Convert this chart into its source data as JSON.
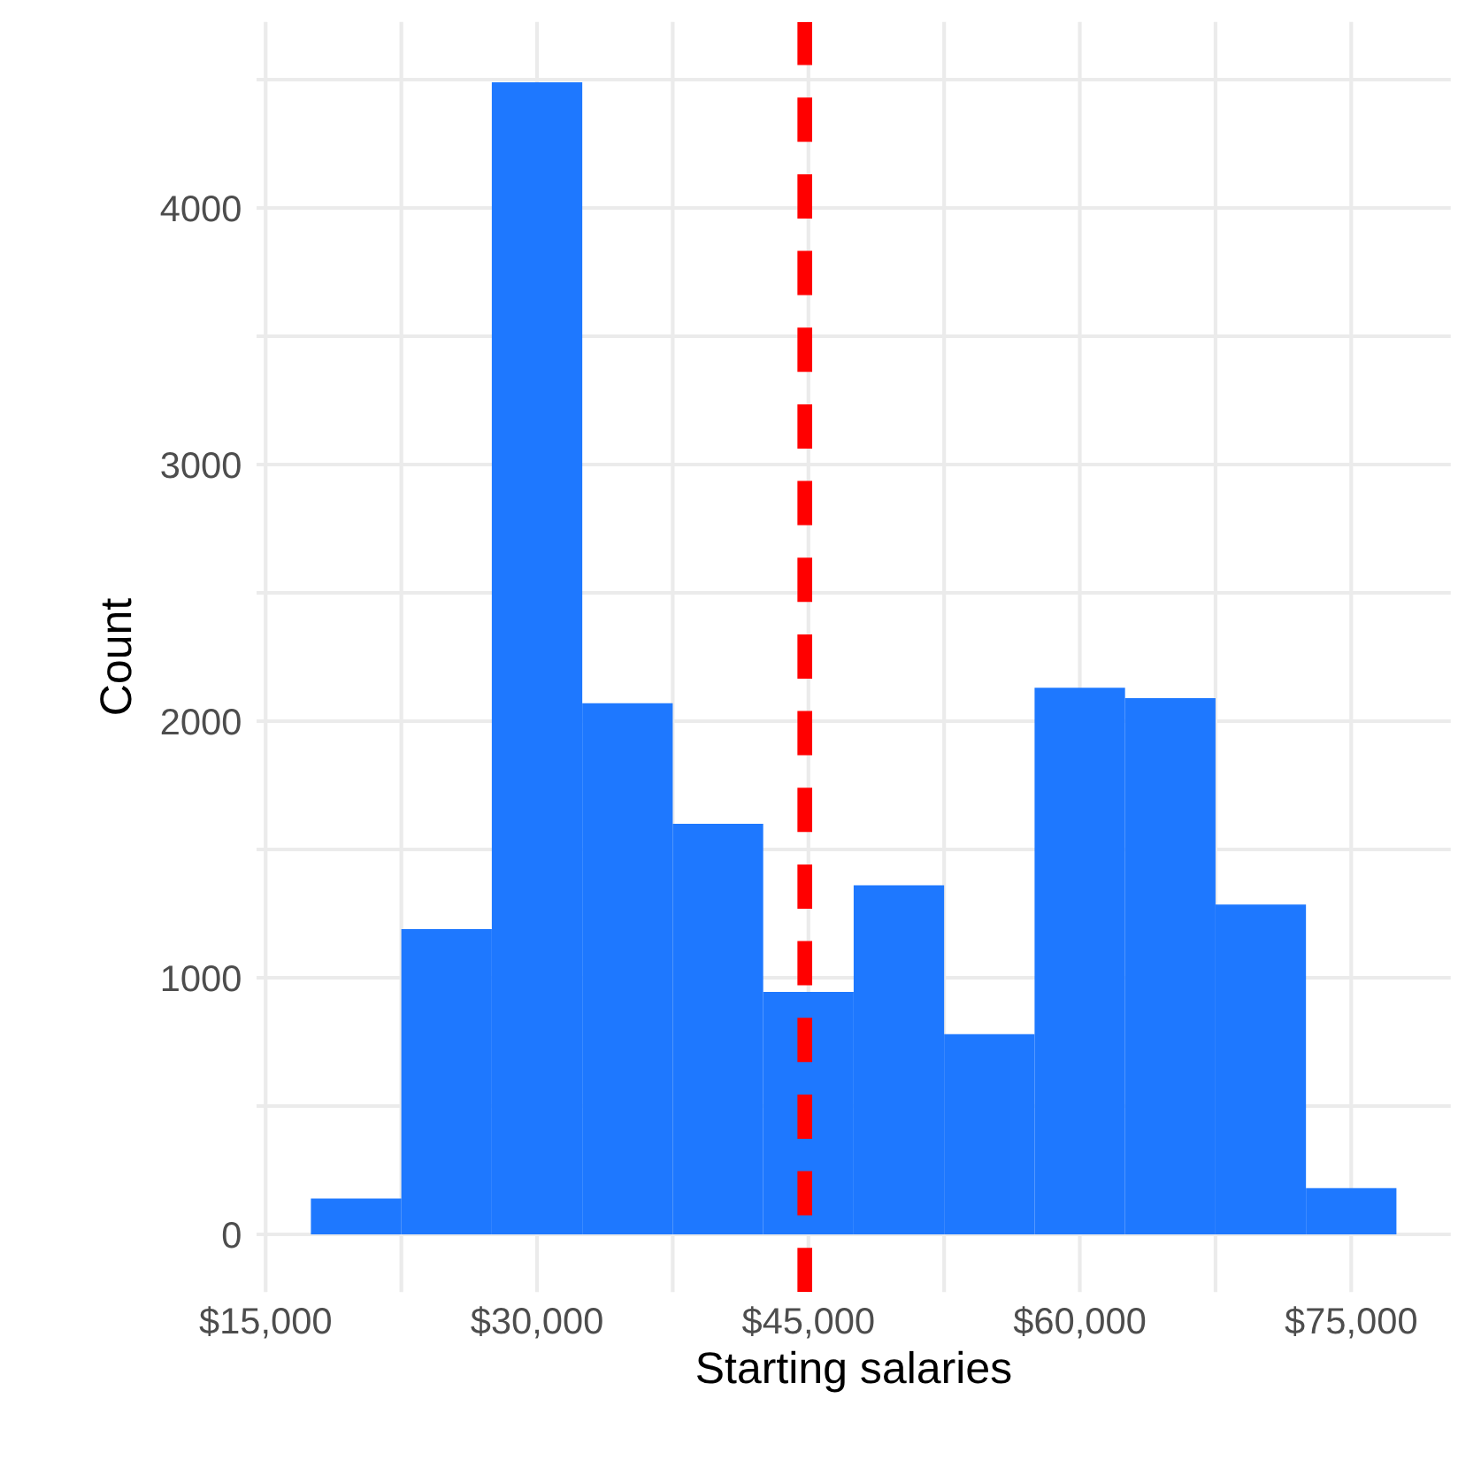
{
  "chart_data": {
    "type": "histogram",
    "xlabel": "Starting salaries",
    "ylabel": "Count",
    "color": "#1e78ff",
    "bins": [
      17500,
      22500,
      27500,
      32500,
      37500,
      42500,
      47500,
      52500,
      57500,
      62500,
      67500,
      72500,
      77500
    ],
    "values": [
      140,
      1190,
      4490,
      2070,
      1600,
      945,
      1360,
      780,
      2130,
      2090,
      1285,
      180
    ],
    "xlim": [
      14500,
      80500
    ],
    "xticks": [
      {
        "value": 15000,
        "label": "$15,000"
      },
      {
        "value": 22500,
        "label": null
      },
      {
        "value": 30000,
        "label": "$30,000"
      },
      {
        "value": 37500,
        "label": null
      },
      {
        "value": 45000,
        "label": "$45,000"
      },
      {
        "value": 52500,
        "label": null
      },
      {
        "value": 60000,
        "label": "$60,000"
      },
      {
        "value": 67500,
        "label": null
      },
      {
        "value": 75000,
        "label": "$75,000"
      }
    ],
    "ylim": [
      -225,
      4725
    ],
    "yticks": [
      0,
      {
        "value": 500,
        "label": null
      },
      1000,
      {
        "value": 1500,
        "label": null
      },
      2000,
      {
        "value": 2500,
        "label": null
      },
      3000,
      {
        "value": 3500,
        "label": null
      },
      4000,
      {
        "value": 4500,
        "label": null
      }
    ],
    "ref_lines": [
      {
        "axis": "x",
        "value": 44800,
        "color": "#ff0000",
        "line_style": "dashed"
      }
    ],
    "grid": true
  }
}
